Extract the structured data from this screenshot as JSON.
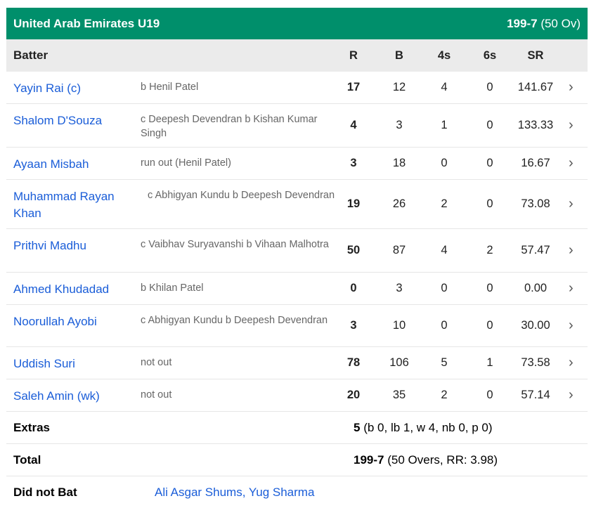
{
  "team": {
    "name": "United Arab Emirates U19",
    "score": "199-7",
    "overs": "(50 Ov)"
  },
  "columns": {
    "batter": "Batter",
    "r": "R",
    "b": "B",
    "fours": "4s",
    "sixes": "6s",
    "sr": "SR"
  },
  "batters": [
    {
      "name": "Yayin Rai (c)",
      "dismissal": "b Henil Patel",
      "r": "17",
      "b": "12",
      "fours": "4",
      "sixes": "0",
      "sr": "141.67"
    },
    {
      "name": "Shalom D'Souza",
      "dismissal": "c Deepesh Devendran b Kishan Kumar Singh",
      "r": "4",
      "b": "3",
      "fours": "1",
      "sixes": "0",
      "sr": "133.33"
    },
    {
      "name": "Ayaan Misbah",
      "dismissal": "run out (Henil Patel)",
      "r": "3",
      "b": "18",
      "fours": "0",
      "sixes": "0",
      "sr": "16.67"
    },
    {
      "name": "Muhammad Rayan Khan",
      "dismissal": "c Abhigyan Kundu b Deepesh Devendran",
      "r": "19",
      "b": "26",
      "fours": "2",
      "sixes": "0",
      "sr": "73.08"
    },
    {
      "name": "Prithvi Madhu",
      "dismissal": "c Vaibhav Suryavanshi b Vihaan Malhotra",
      "r": "50",
      "b": "87",
      "fours": "4",
      "sixes": "2",
      "sr": "57.47"
    },
    {
      "name": "Ahmed Khudadad",
      "dismissal": "b Khilan Patel",
      "r": "0",
      "b": "3",
      "fours": "0",
      "sixes": "0",
      "sr": "0.00"
    },
    {
      "name": "Noorullah Ayobi",
      "dismissal": "c Abhigyan Kundu b Deepesh Devendran",
      "r": "3",
      "b": "10",
      "fours": "0",
      "sixes": "0",
      "sr": "30.00"
    },
    {
      "name": "Uddish Suri",
      "dismissal": "not out",
      "r": "78",
      "b": "106",
      "fours": "5",
      "sixes": "1",
      "sr": "73.58"
    },
    {
      "name": "Saleh Amin (wk)",
      "dismissal": "not out",
      "r": "20",
      "b": "35",
      "fours": "2",
      "sixes": "0",
      "sr": "57.14"
    }
  ],
  "extras": {
    "label": "Extras",
    "value": "5",
    "detail": "(b 0, lb 1, w 4, nb 0, p 0)"
  },
  "total": {
    "label": "Total",
    "value": "199-7",
    "detail": "(50 Overs, RR: 3.98)"
  },
  "did_not_bat": {
    "label": "Did not Bat",
    "players": "Ali Asgar Shums, Yug Sharma"
  },
  "colors": {
    "header": "#008f6b",
    "link": "#1a5dd8",
    "column_header_bg": "#ebebeb"
  }
}
